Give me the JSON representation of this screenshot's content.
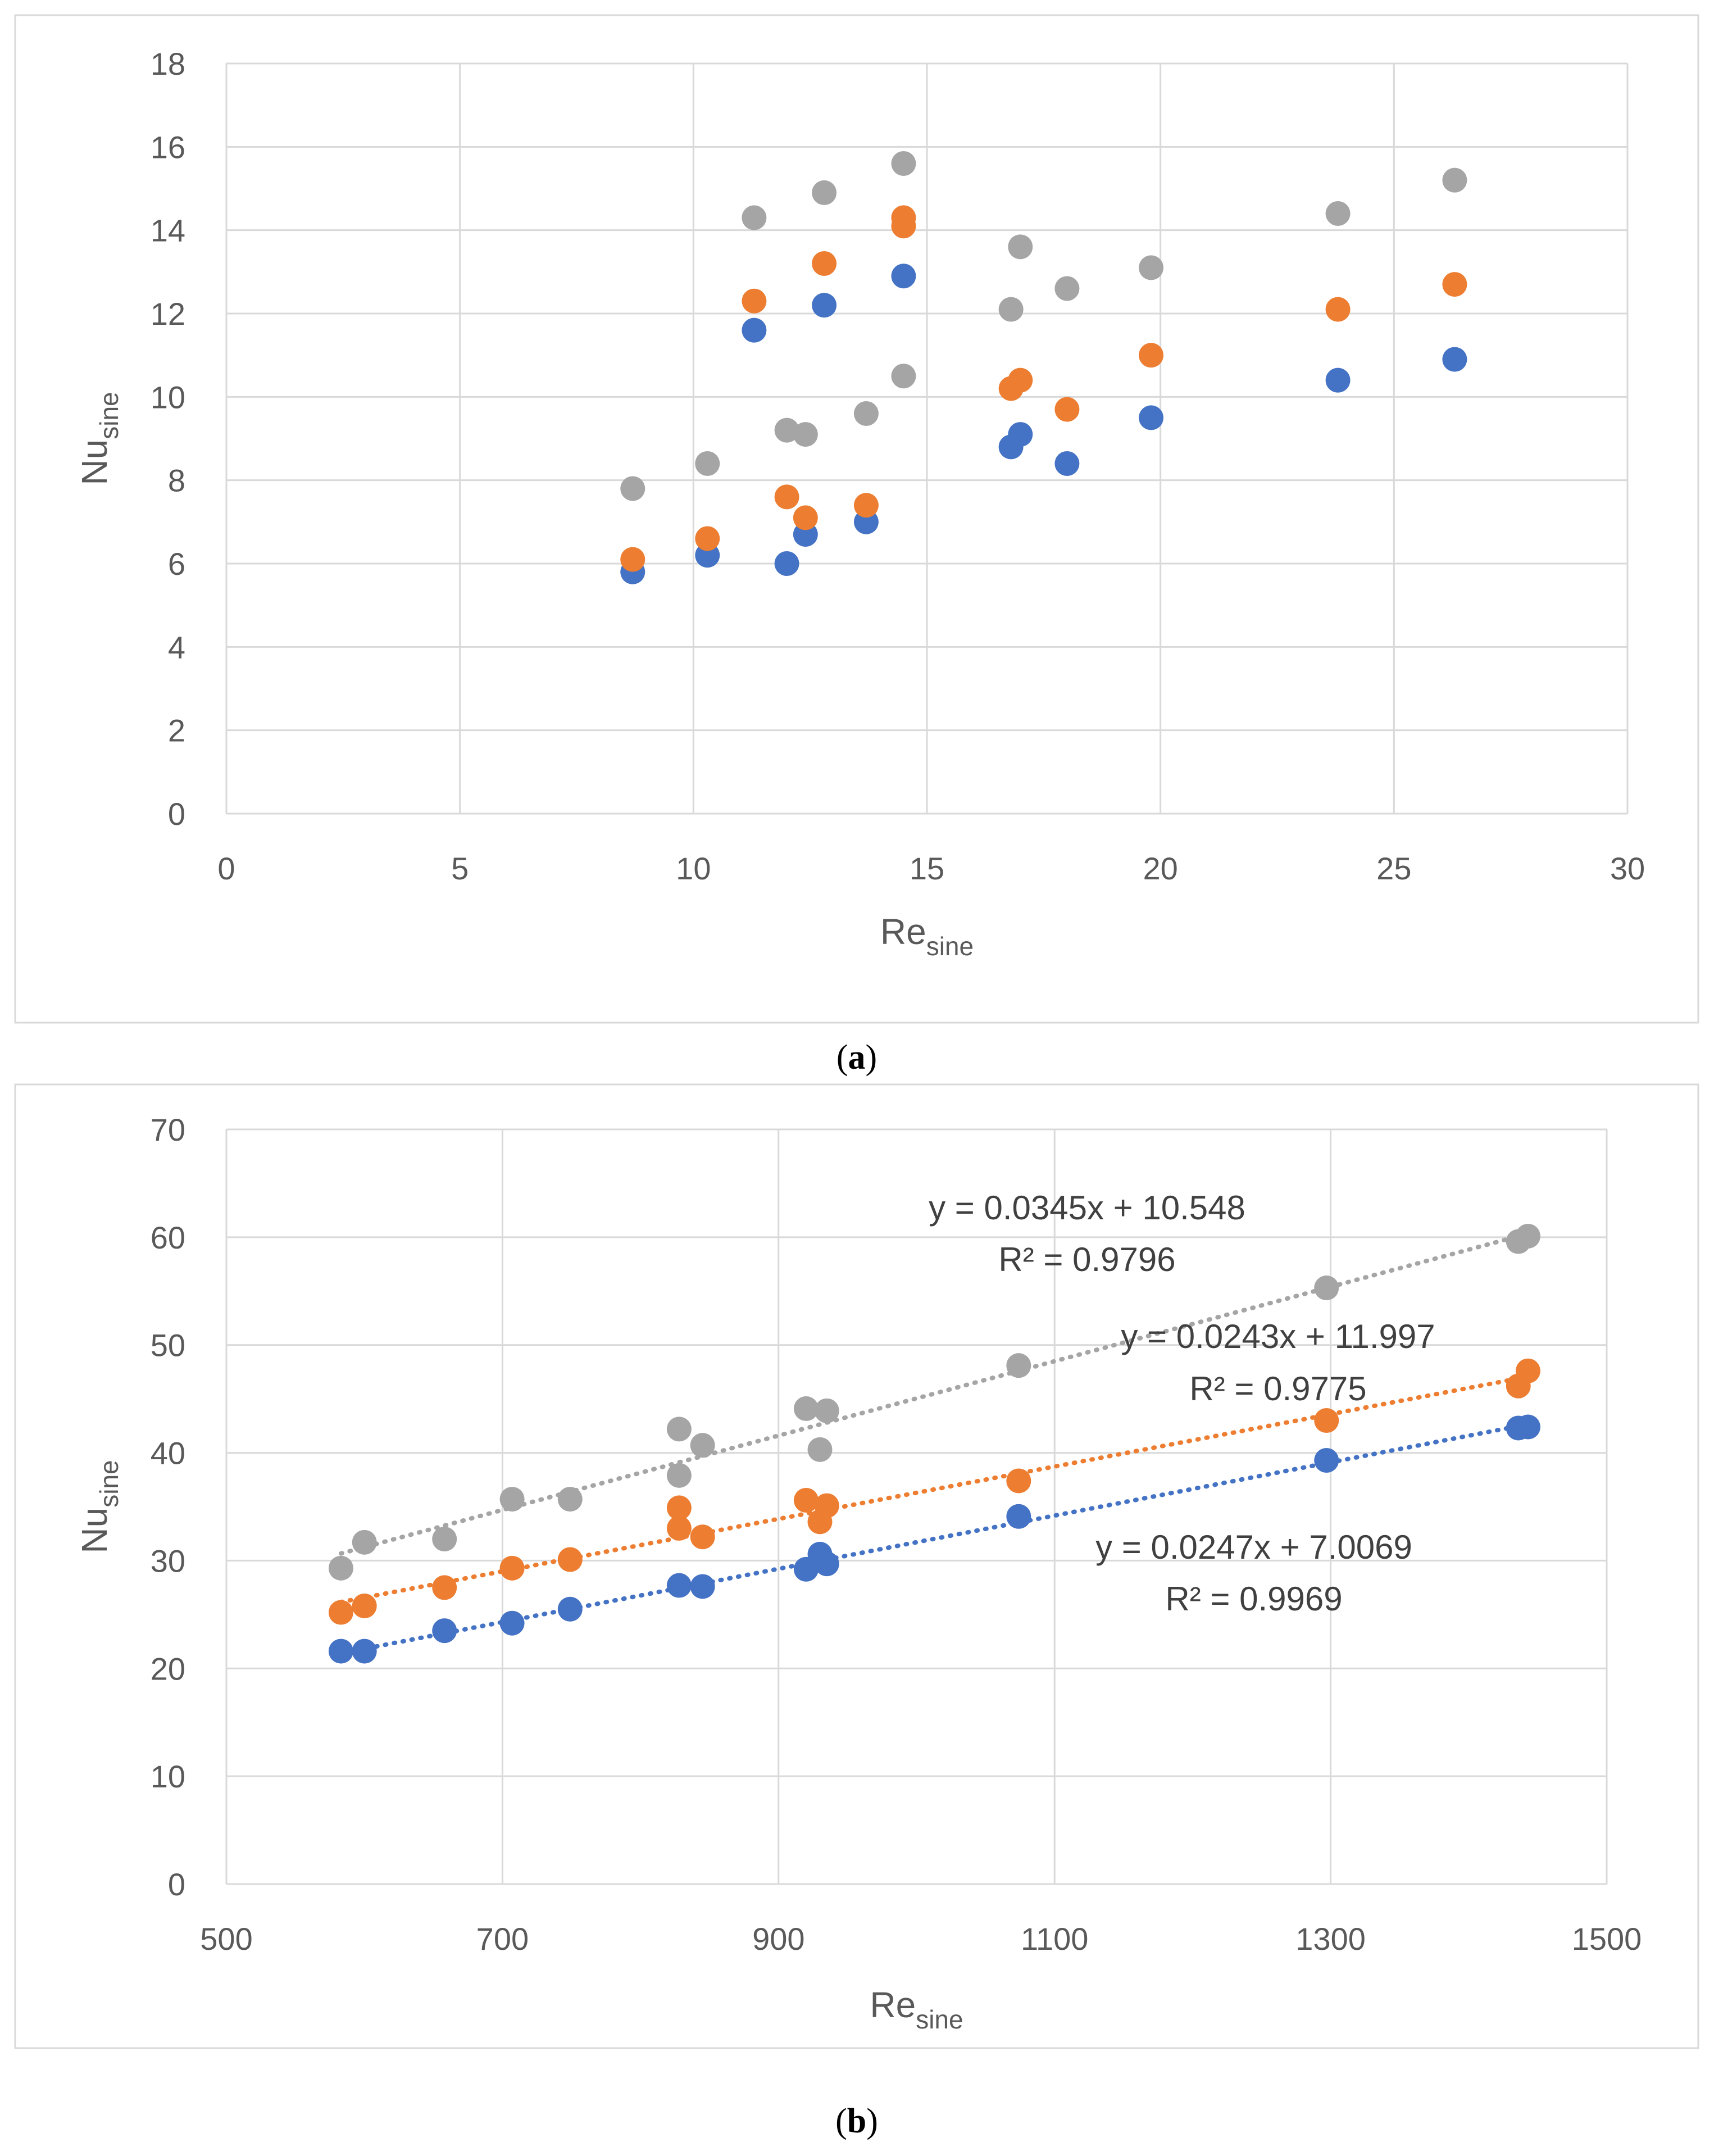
{
  "colors": {
    "blue": "#4472C4",
    "orange": "#ED7D31",
    "gray": "#A5A5A5"
  },
  "chart_data": [
    {
      "type": "scatter",
      "caption_letter": "a",
      "xlabel": "Re",
      "xlabel_sub": "sine",
      "ylabel": "Nu",
      "ylabel_sub": "sine",
      "xlim": [
        0,
        30
      ],
      "ylim": [
        0,
        18
      ],
      "xticks": [
        0,
        5,
        10,
        15,
        20,
        25,
        30
      ],
      "yticks": [
        0,
        2,
        4,
        6,
        8,
        10,
        12,
        14,
        16,
        18
      ],
      "grid": true,
      "series": [
        {
          "name": "blue",
          "color": "#4472C4",
          "x": [
            8.7,
            10.3,
            11.3,
            12.0,
            12.4,
            12.8,
            13.7,
            14.5,
            16.8,
            17.0,
            18.0,
            19.8,
            23.8,
            26.3
          ],
          "y": [
            5.8,
            6.2,
            11.6,
            6.0,
            6.7,
            12.2,
            7.0,
            12.9,
            8.8,
            9.1,
            8.4,
            9.5,
            10.4,
            10.9
          ]
        },
        {
          "name": "orange",
          "color": "#ED7D31",
          "x": [
            8.7,
            10.3,
            11.3,
            12.0,
            12.4,
            12.8,
            13.7,
            14.5,
            14.5,
            16.8,
            17.0,
            18.0,
            19.8,
            23.8,
            26.3
          ],
          "y": [
            6.1,
            6.6,
            12.3,
            7.6,
            7.1,
            13.2,
            7.4,
            14.3,
            14.1,
            10.2,
            10.4,
            9.7,
            11.0,
            12.1,
            12.7
          ]
        },
        {
          "name": "gray",
          "color": "#A5A5A5",
          "x": [
            8.7,
            10.3,
            11.3,
            12.0,
            12.4,
            12.8,
            13.7,
            14.5,
            14.5,
            16.8,
            17.0,
            18.0,
            19.8,
            23.8,
            26.3
          ],
          "y": [
            7.8,
            8.4,
            14.3,
            9.2,
            9.1,
            14.9,
            9.6,
            15.6,
            10.5,
            12.1,
            13.6,
            12.6,
            13.1,
            14.4,
            15.2
          ]
        }
      ]
    },
    {
      "type": "scatter",
      "caption_letter": "b",
      "xlabel": "Re",
      "xlabel_sub": "sine",
      "ylabel": "Nu",
      "ylabel_sub": "sine",
      "xlim": [
        500,
        1500
      ],
      "ylim": [
        0,
        70
      ],
      "xticks": [
        500,
        700,
        900,
        1100,
        1300,
        1500
      ],
      "yticks": [
        0,
        10,
        20,
        30,
        40,
        50,
        60,
        70
      ],
      "grid": true,
      "series": [
        {
          "name": "blue",
          "color": "#4472C4",
          "x": [
            583,
            600,
            658,
            707,
            749,
            828,
            845,
            920,
            930,
            935,
            1074,
            1297,
            1436,
            1443
          ],
          "y": [
            21.6,
            21.6,
            23.5,
            24.2,
            25.5,
            27.7,
            27.6,
            29.2,
            30.6,
            29.7,
            34.1,
            39.3,
            42.3,
            42.4
          ],
          "trend": {
            "slope": 0.0247,
            "intercept": 7.0069,
            "x_range": [
              583,
              1443
            ]
          },
          "equation": "y = 0.0247x + 7.0069",
          "r2": "R² = 0.9969"
        },
        {
          "name": "orange",
          "color": "#ED7D31",
          "x": [
            583,
            600,
            658,
            707,
            749,
            828,
            828,
            845,
            920,
            930,
            935,
            1074,
            1297,
            1436,
            1443
          ],
          "y": [
            25.2,
            25.8,
            27.5,
            29.3,
            30.1,
            33.0,
            34.9,
            32.2,
            35.6,
            33.6,
            35.1,
            37.4,
            43.0,
            46.2,
            47.6
          ],
          "trend": {
            "slope": 0.0243,
            "intercept": 11.997,
            "x_range": [
              583,
              1443
            ]
          },
          "equation": "y = 0.0243x + 11.997",
          "r2": "R² = 0.9775"
        },
        {
          "name": "gray",
          "color": "#A5A5A5",
          "x": [
            583,
            600,
            658,
            707,
            749,
            828,
            828,
            845,
            920,
            930,
            935,
            1074,
            1297,
            1436,
            1443
          ],
          "y": [
            29.3,
            31.7,
            32.0,
            35.7,
            35.7,
            37.9,
            42.2,
            40.7,
            44.1,
            40.3,
            43.9,
            48.1,
            55.3,
            59.6,
            60.1
          ],
          "trend": {
            "slope": 0.0345,
            "intercept": 10.548,
            "x_range": [
              583,
              1443
            ]
          },
          "equation": "y = 0.0345x + 10.548",
          "r2": "R² = 0.9796"
        }
      ]
    }
  ]
}
